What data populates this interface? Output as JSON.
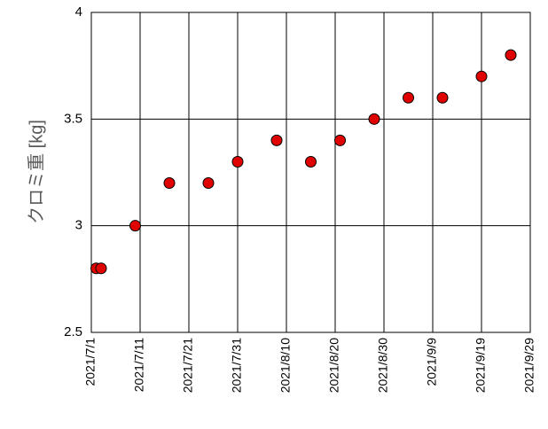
{
  "chart_data": {
    "type": "scatter",
    "y_label": "クロミ重 [kg]",
    "x": [
      "2021/7/2",
      "2021/7/3",
      "2021/7/10",
      "2021/7/17",
      "2021/7/25",
      "2021/7/31",
      "2021/8/8",
      "2021/8/15",
      "2021/8/21",
      "2021/8/28",
      "2021/9/4",
      "2021/9/11",
      "2021/9/19",
      "2021/9/25"
    ],
    "values": [
      2.8,
      2.8,
      3.0,
      3.2,
      3.2,
      3.3,
      3.4,
      3.3,
      3.4,
      3.5,
      3.6,
      3.6,
      3.7,
      3.8
    ],
    "color": "#e00000",
    "xlim": [
      "2021/7/1",
      "2021/9/29"
    ],
    "xticks": [
      "2021/7/1",
      "2021/7/11",
      "2021/7/21",
      "2021/7/31",
      "2021/8/10",
      "2021/8/20",
      "2021/8/30",
      "2021/9/9",
      "2021/9/19",
      "2021/9/29"
    ],
    "ylim": [
      2.5,
      4
    ],
    "yticks": [
      2.5,
      3,
      3.5,
      4
    ],
    "grid": true
  }
}
